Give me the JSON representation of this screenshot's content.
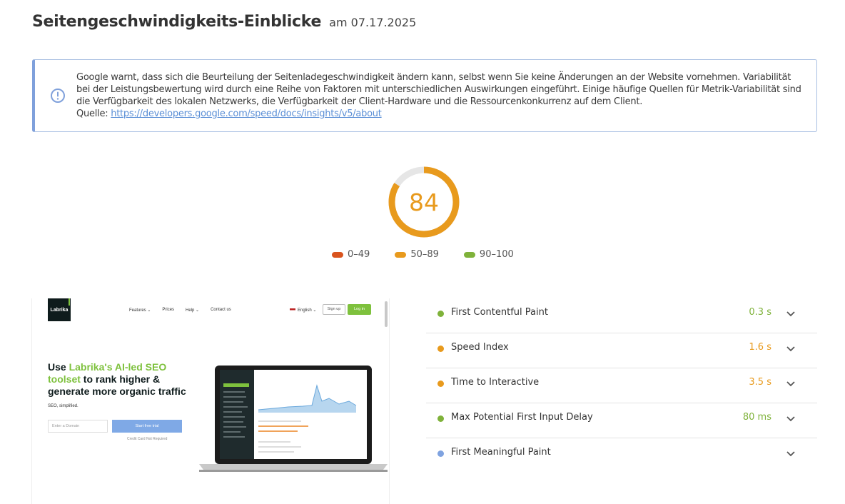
{
  "header": {
    "title": "Seitengeschwindigkeits-Einblicke",
    "date": "am 07.17.2025"
  },
  "notice": {
    "icon": "info-icon",
    "text": "Google warnt, dass sich die Beurteilung der Seitenladegeschwindigkeit ändern kann, selbst wenn Sie keine Änderungen an der Website vornehmen. Variabilität bei der Leistungsbewertung wird durch eine Reihe von Faktoren mit unterschiedlichen Auswirkungen eingeführt. Einige häufige Quellen für Metrik-Variabilität sind die Verfügbarkeit des lokalen Netzwerks, die Verfügbarkeit der Client-Hardware und die Ressourcenkonkurrenz auf dem Client.",
    "source_label": "Quelle:",
    "source_link": "https://developers.google.com/speed/docs/insights/v5/about",
    "accent_color": "#7fa0db"
  },
  "score": {
    "value": "84",
    "fraction": 0.84,
    "color": "#e89a1d",
    "track_color": "#e6e6e6"
  },
  "legend": [
    {
      "label": "0–49",
      "color": "#d9541e"
    },
    {
      "label": "50–89",
      "color": "#e89a1d"
    },
    {
      "label": "90–100",
      "color": "#7fb23a"
    }
  ],
  "screenshot": {
    "logo": "Labrika",
    "nav": [
      "Features ⌄",
      "Prices",
      "Help ⌄",
      "Contact us"
    ],
    "language": "English ⌄",
    "signup": "Sign up",
    "login": "Log in",
    "headline_prefix": "Use ",
    "headline_highlight": "Labrika's AI-led SEO toolset",
    "headline_suffix": " to rank higher & generate more organic traffic",
    "subtitle": "SEO, simplified.",
    "input_placeholder": "Enter a Domain",
    "cta": "Start free trial",
    "note": "Credit Card Not Required",
    "accent_color": "#7ec13d"
  },
  "metrics": [
    {
      "name": "First Contentful Paint",
      "value": "0.3 s",
      "color": "#7fb23a"
    },
    {
      "name": "Speed Index",
      "value": "1.6 s",
      "color": "#e89a1d"
    },
    {
      "name": "Time to Interactive",
      "value": "3.5 s",
      "color": "#e89a1d"
    },
    {
      "name": "Max Potential First Input Delay",
      "value": "80 ms",
      "color": "#7fb23a"
    },
    {
      "name": "First Meaningful Paint",
      "value": "",
      "color": "#7fa3e0"
    }
  ]
}
